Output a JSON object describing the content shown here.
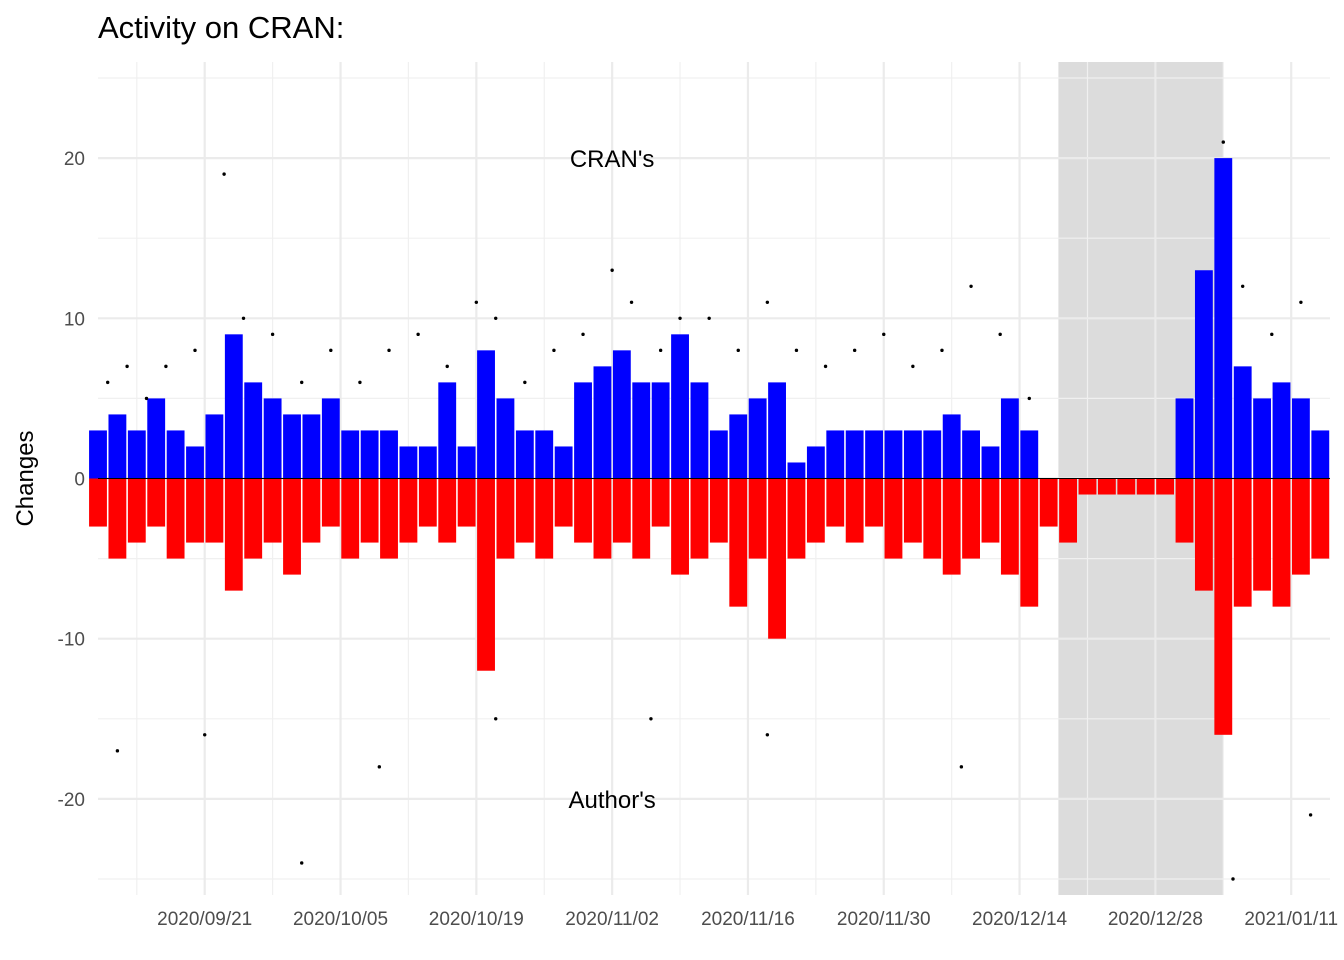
{
  "chart_data": {
    "type": "bar",
    "title": "Activity on CRAN:",
    "xlabel": "",
    "ylabel": "Changes",
    "x_type": "date",
    "xlim": [
      "2020-09-10",
      "2021-01-15"
    ],
    "ylim": [
      -26,
      26
    ],
    "grid": true,
    "legend": "none",
    "x_tick_labels": [
      "2020/09/21",
      "2020/10/05",
      "2020/10/19",
      "2020/11/02",
      "2020/11/16",
      "2020/11/30",
      "2020/12/14",
      "2020/12/28",
      "2021/01/11"
    ],
    "x_tick_dates": [
      "2020-09-21",
      "2020-10-05",
      "2020-10-19",
      "2020-11-02",
      "2020-11-16",
      "2020-11-30",
      "2020-12-14",
      "2020-12-28",
      "2021-01-11"
    ],
    "y_ticks": [
      20,
      10,
      0,
      -10,
      -20
    ],
    "y_tick_labels": [
      "20",
      "10",
      "0",
      "-10",
      "-20"
    ],
    "annotations": [
      {
        "text": "CRAN's",
        "date": "2020-11-02",
        "y": 20
      },
      {
        "text": "Author's",
        "date": "2020-11-02",
        "y": -20
      }
    ],
    "shaded_region": {
      "start": "2020-12-18",
      "end": "2021-01-04",
      "color": "#dcdcdc"
    },
    "series": [
      {
        "color": "#0000ff",
        "dates": [
          "2020-09-10",
          "2020-09-12",
          "2020-09-14",
          "2020-09-16",
          "2020-09-18",
          "2020-09-20",
          "2020-09-22",
          "2020-09-24",
          "2020-09-26",
          "2020-09-28",
          "2020-09-30",
          "2020-10-02",
          "2020-10-04",
          "2020-10-06",
          "2020-10-08",
          "2020-10-10",
          "2020-10-12",
          "2020-10-14",
          "2020-10-16",
          "2020-10-18",
          "2020-10-20",
          "2020-10-22",
          "2020-10-24",
          "2020-10-26",
          "2020-10-28",
          "2020-10-30",
          "2020-11-01",
          "2020-11-03",
          "2020-11-05",
          "2020-11-07",
          "2020-11-09",
          "2020-11-11",
          "2020-11-13",
          "2020-11-15",
          "2020-11-17",
          "2020-11-19",
          "2020-11-21",
          "2020-11-23",
          "2020-11-25",
          "2020-11-27",
          "2020-11-29",
          "2020-12-01",
          "2020-12-03",
          "2020-12-05",
          "2020-12-07",
          "2020-12-09",
          "2020-12-11",
          "2020-12-13",
          "2020-12-15",
          "2020-12-17",
          "2020-12-19",
          "2020-12-21",
          "2020-12-23",
          "2020-12-25",
          "2020-12-27",
          "2020-12-29",
          "2020-12-31",
          "2021-01-02",
          "2021-01-04",
          "2021-01-06",
          "2021-01-08",
          "2021-01-10",
          "2021-01-12",
          "2021-01-14"
        ],
        "values": [
          3,
          4,
          3,
          5,
          3,
          2,
          4,
          9,
          6,
          5,
          4,
          4,
          5,
          3,
          3,
          3,
          2,
          2,
          6,
          2,
          8,
          5,
          3,
          3,
          2,
          6,
          7,
          8,
          6,
          6,
          9,
          6,
          3,
          4,
          5,
          6,
          1,
          2,
          3,
          3,
          3,
          3,
          3,
          3,
          4,
          3,
          2,
          5,
          3,
          0,
          0,
          0,
          0,
          0,
          0,
          0,
          5,
          13,
          20,
          7,
          5,
          6,
          5,
          3
        ]
      },
      {
        "color": "#ff0000",
        "dates": [
          "2020-09-10",
          "2020-09-12",
          "2020-09-14",
          "2020-09-16",
          "2020-09-18",
          "2020-09-20",
          "2020-09-22",
          "2020-09-24",
          "2020-09-26",
          "2020-09-28",
          "2020-09-30",
          "2020-10-02",
          "2020-10-04",
          "2020-10-06",
          "2020-10-08",
          "2020-10-10",
          "2020-10-12",
          "2020-10-14",
          "2020-10-16",
          "2020-10-18",
          "2020-10-20",
          "2020-10-22",
          "2020-10-24",
          "2020-10-26",
          "2020-10-28",
          "2020-10-30",
          "2020-11-01",
          "2020-11-03",
          "2020-11-05",
          "2020-11-07",
          "2020-11-09",
          "2020-11-11",
          "2020-11-13",
          "2020-11-15",
          "2020-11-17",
          "2020-11-19",
          "2020-11-21",
          "2020-11-23",
          "2020-11-25",
          "2020-11-27",
          "2020-11-29",
          "2020-12-01",
          "2020-12-03",
          "2020-12-05",
          "2020-12-07",
          "2020-12-09",
          "2020-12-11",
          "2020-12-13",
          "2020-12-15",
          "2020-12-17",
          "2020-12-19",
          "2020-12-21",
          "2020-12-23",
          "2020-12-25",
          "2020-12-27",
          "2020-12-29",
          "2020-12-31",
          "2021-01-02",
          "2021-01-04",
          "2021-01-06",
          "2021-01-08",
          "2021-01-10",
          "2021-01-12",
          "2021-01-14"
        ],
        "values": [
          -3,
          -5,
          -4,
          -3,
          -5,
          -4,
          -4,
          -7,
          -5,
          -4,
          -6,
          -4,
          -3,
          -5,
          -4,
          -5,
          -4,
          -3,
          -4,
          -3,
          -12,
          -5,
          -4,
          -5,
          -3,
          -4,
          -5,
          -4,
          -5,
          -3,
          -6,
          -5,
          -4,
          -8,
          -5,
          -10,
          -5,
          -4,
          -3,
          -4,
          -3,
          -5,
          -4,
          -5,
          -6,
          -5,
          -4,
          -6,
          -8,
          -3,
          -4,
          -1,
          -1,
          -1,
          -1,
          -1,
          -4,
          -7,
          -16,
          -8,
          -7,
          -8,
          -6,
          -5
        ]
      }
    ],
    "points": {
      "dates": [
        "2020-09-11",
        "2020-09-13",
        "2020-09-15",
        "2020-09-17",
        "2020-09-20",
        "2020-09-23",
        "2020-09-25",
        "2020-09-28",
        "2020-10-01",
        "2020-10-04",
        "2020-10-07",
        "2020-10-10",
        "2020-10-13",
        "2020-10-16",
        "2020-10-19",
        "2020-10-21",
        "2020-10-24",
        "2020-10-27",
        "2020-10-30",
        "2020-11-02",
        "2020-11-04",
        "2020-11-07",
        "2020-11-09",
        "2020-11-12",
        "2020-11-15",
        "2020-11-18",
        "2020-11-21",
        "2020-11-24",
        "2020-11-27",
        "2020-11-30",
        "2020-12-03",
        "2020-12-06",
        "2020-12-09",
        "2020-12-12",
        "2020-12-15",
        "2021-01-04",
        "2021-01-06",
        "2021-01-09",
        "2021-01-12",
        "2020-09-12",
        "2020-09-21",
        "2020-10-01",
        "2020-10-09",
        "2020-10-21",
        "2020-11-06",
        "2020-11-18",
        "2020-12-08",
        "2021-01-05",
        "2021-01-13"
      ],
      "values": [
        6,
        7,
        5,
        7,
        8,
        19,
        10,
        9,
        6,
        8,
        6,
        8,
        9,
        7,
        11,
        10,
        6,
        8,
        9,
        13,
        11,
        8,
        10,
        10,
        8,
        11,
        8,
        7,
        8,
        9,
        7,
        8,
        12,
        9,
        5,
        21,
        12,
        9,
        11,
        -17,
        -16,
        -24,
        -18,
        -15,
        -15,
        -16,
        -18,
        -25,
        -21
      ]
    }
  }
}
